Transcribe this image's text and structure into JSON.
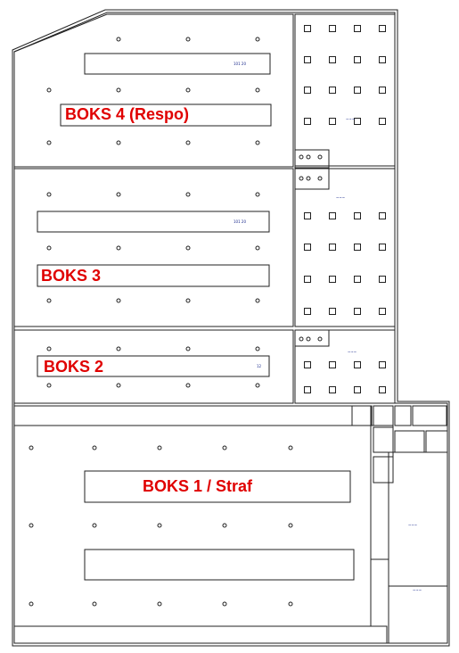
{
  "boxes": {
    "boks4": "BOKS 4 (Respo)",
    "boks3": "BOKS 3",
    "boks2": "BOKS 2",
    "boks1": "BOKS 1 / Straf"
  },
  "small_labels": {
    "bar4": "101 20",
    "bar3": "101 20",
    "bar2": "12",
    "grid4": "~~~",
    "grid3": "~~~",
    "grid2": "~~~",
    "right_block": "~~~",
    "right_bottom": "~~~"
  },
  "colors": {
    "label": "#e00000",
    "line": "#222222",
    "tiny_text": "#1a2a8c"
  }
}
